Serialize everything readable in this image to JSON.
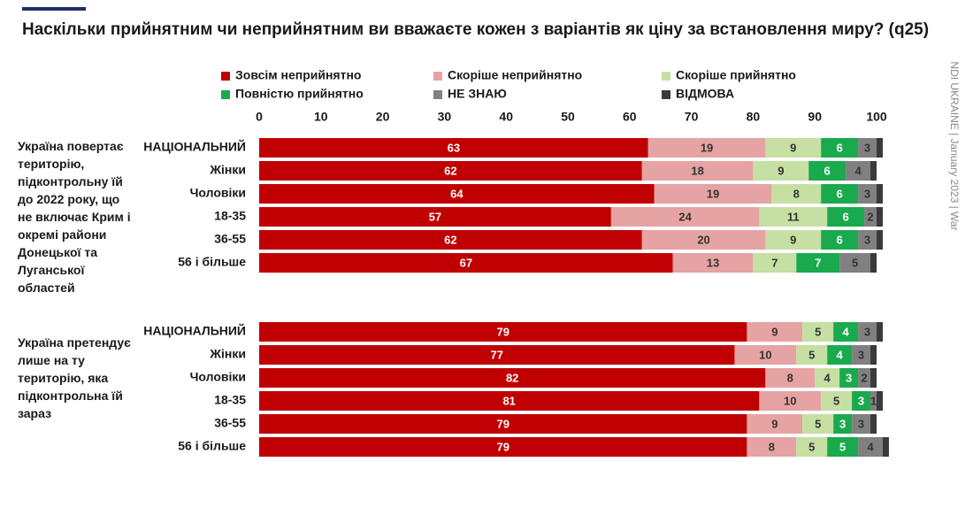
{
  "chart_data": {
    "type": "stacked-bar",
    "orientation": "horizontal",
    "title": "Наскільки прийнятним чи неприйнятним ви вважаєте кожен з варіантів як ціну за встановлення миру? (q25)",
    "source": "NDI UKRAINE | January 2023 | War",
    "xlim": [
      0,
      100
    ],
    "xticks": [
      0,
      10,
      20,
      30,
      40,
      50,
      60,
      70,
      80,
      90,
      100
    ],
    "groups": [
      {
        "label": "Україна повертає територію, підконтрольну їй до 2022 року, що не включає Крим і окремі райони Донецької та Луганської областей",
        "categories": [
          "НАЦІОНАЛЬНИЙ",
          "Жінки",
          "Чоловіки",
          "18-35",
          "36-55",
          "56 і більше"
        ]
      },
      {
        "label": "Україна претендує лише на ту територію, яка підконтрольна їй зараз",
        "categories": [
          "НАЦІОНАЛЬНИЙ",
          "Жінки",
          "Чоловіки",
          "18-35",
          "36-55",
          "56 і більше"
        ]
      }
    ],
    "series": [
      {
        "name": "Зовсім неприйнятно",
        "color": "#c00000",
        "values": [
          [
            63,
            62,
            64,
            57,
            62,
            67
          ],
          [
            79,
            77,
            82,
            81,
            79,
            79
          ]
        ]
      },
      {
        "name": "Скоріше неприйнятно",
        "color": "#e6a3a3",
        "values": [
          [
            19,
            18,
            19,
            24,
            20,
            13
          ],
          [
            9,
            10,
            8,
            10,
            9,
            8
          ]
        ]
      },
      {
        "name": "Скоріше прийнятно",
        "color": "#c6dfa3",
        "values": [
          [
            9,
            9,
            8,
            11,
            9,
            7
          ],
          [
            5,
            5,
            4,
            5,
            5,
            5
          ]
        ]
      },
      {
        "name": "Повністю прийнятно",
        "color": "#1aaa4e",
        "values": [
          [
            6,
            6,
            6,
            6,
            6,
            7
          ],
          [
            4,
            4,
            3,
            3,
            3,
            5
          ]
        ]
      },
      {
        "name": "НЕ ЗНАЮ",
        "color": "#808080",
        "values": [
          [
            3,
            4,
            3,
            2,
            3,
            5
          ],
          [
            3,
            3,
            2,
            1,
            3,
            4
          ]
        ]
      },
      {
        "name": "ВІДМОВА",
        "color": "#3a3a3a",
        "show_labels": false,
        "values": [
          [
            1,
            1,
            1,
            1,
            1,
            1
          ],
          [
            1,
            1,
            1,
            1,
            1,
            1
          ]
        ]
      }
    ]
  }
}
